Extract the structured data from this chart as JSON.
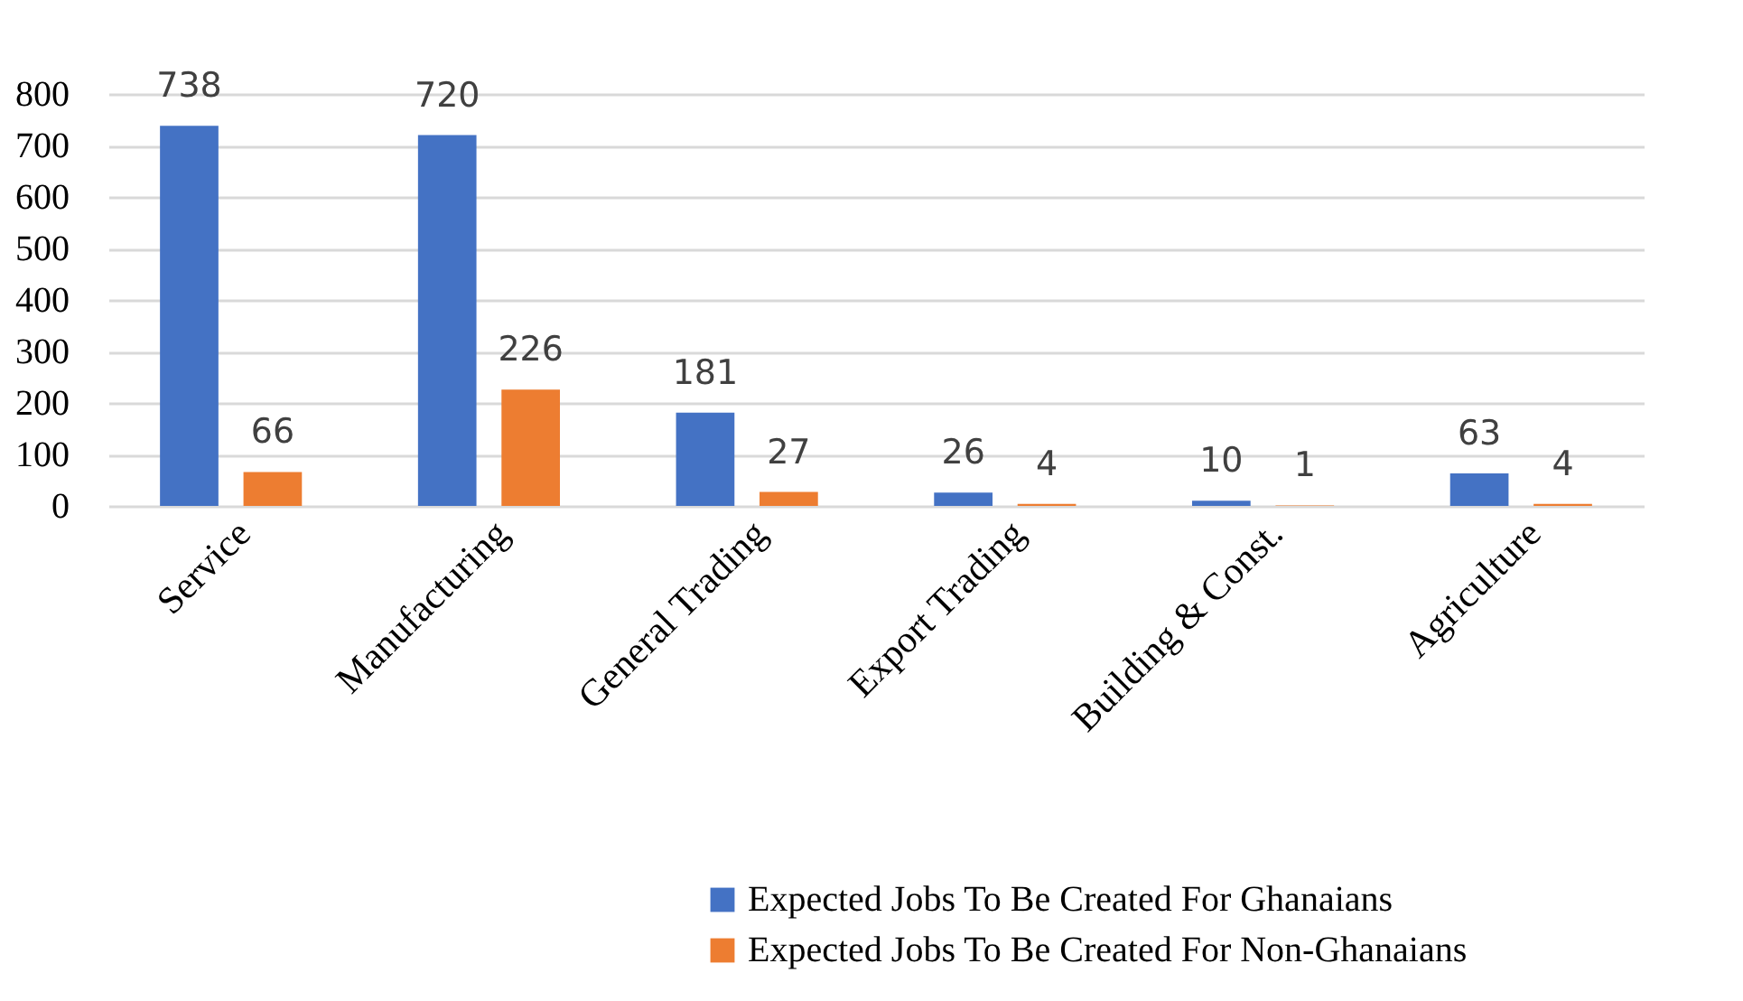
{
  "chart_data": {
    "type": "bar",
    "categories": [
      "Service",
      "Manufacturing",
      "General Trading",
      "Export Trading",
      "Building & Const.",
      "Agriculture"
    ],
    "series": [
      {
        "name": "Expected Jobs To Be Created For Ghanaians",
        "color": "#4472c4",
        "values": [
          738,
          720,
          181,
          26,
          10,
          63
        ]
      },
      {
        "name": "Expected Jobs  To Be Created For Non-Ghanaians",
        "color": "#ed7d31",
        "values": [
          66,
          226,
          27,
          4,
          1,
          4
        ]
      }
    ],
    "ylim": [
      0,
      800
    ],
    "yticks": [
      0,
      100,
      200,
      300,
      400,
      500,
      600,
      700,
      800
    ],
    "grid": "y",
    "data_labels": true,
    "legend": "bottom"
  }
}
